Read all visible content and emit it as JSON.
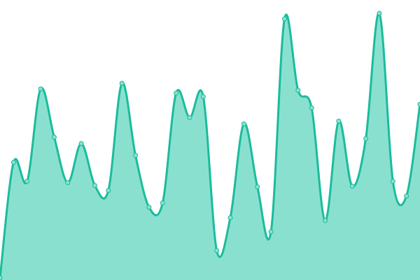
{
  "chart_data": {
    "type": "area",
    "title": "",
    "xlabel": "",
    "ylabel": "",
    "x": [
      0,
      1,
      2,
      3,
      4,
      5,
      6,
      7,
      8,
      9,
      10,
      11,
      12,
      13,
      14,
      15,
      16,
      17,
      18,
      19,
      20,
      21,
      22,
      23,
      24,
      25,
      26,
      27,
      28,
      29,
      30,
      31
    ],
    "values": [
      3,
      168,
      141,
      273,
      204,
      139,
      195,
      135,
      128,
      281,
      178,
      104,
      110,
      267,
      232,
      262,
      42,
      89,
      223,
      133,
      69,
      373,
      271,
      246,
      85,
      227,
      134,
      202,
      381,
      141,
      120,
      251
    ],
    "ylim": [
      0,
      400
    ],
    "grid": false,
    "axes_visible": false,
    "curve": "smooth",
    "markers": true,
    "colors": {
      "line": "#1abc9c",
      "fill": "#8ae0cf",
      "marker_fill": "#8ae0cf",
      "marker_stroke": "#1abc9c"
    }
  }
}
